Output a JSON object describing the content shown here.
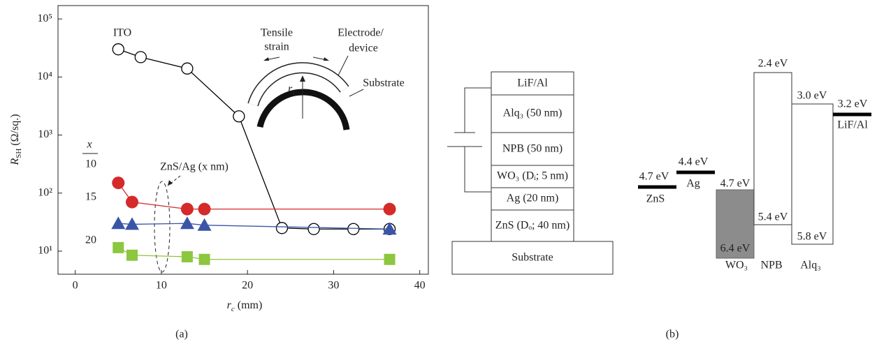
{
  "chart_data": {
    "type": "line",
    "log_y": true,
    "x_label": {
      "main": "r",
      "sub": "c",
      "unit": "(mm)"
    },
    "y_label": {
      "main": "R",
      "sub": "SH",
      "unit": "(Ω/sq.)"
    },
    "xlim": [
      -2,
      41
    ],
    "xticks": [
      0,
      10,
      20,
      30,
      40
    ],
    "ylim": [
      4,
      170000
    ],
    "yticks": [
      {
        "value": 10,
        "label": "10¹"
      },
      {
        "value": 100,
        "label": "10²"
      },
      {
        "value": 1000,
        "label": "10³"
      },
      {
        "value": 10000,
        "label": "10⁴"
      },
      {
        "value": 100000,
        "label": "10⁵"
      }
    ],
    "legend_title": "x",
    "series": [
      {
        "name": "ITO",
        "color": "#000000",
        "marker": "circle-open",
        "x": [
          5,
          7.6,
          13,
          19,
          24,
          27.7,
          32.3,
          36.5
        ],
        "values": [
          30000,
          22000,
          14000,
          2100,
          25,
          24,
          24,
          24
        ]
      },
      {
        "name": "10",
        "color": "#d42a2a",
        "marker": "circle",
        "x": [
          5,
          6.6,
          13,
          15,
          36.5
        ],
        "values": [
          150,
          70,
          53,
          53,
          53
        ]
      },
      {
        "name": "15",
        "color": "#3a55a8",
        "marker": "triangle",
        "x": [
          5,
          6.6,
          13,
          15,
          36.5
        ],
        "values": [
          30,
          29,
          30,
          28,
          24
        ]
      },
      {
        "name": "20",
        "color": "#8dc63f",
        "marker": "square",
        "x": [
          5,
          6.6,
          13,
          15,
          36.5
        ],
        "values": [
          11.5,
          8.5,
          8,
          7.2,
          7.2
        ]
      }
    ],
    "annotations": [
      "ZnS/Ag (x nm)",
      "Tensile",
      "strain",
      "Electrode/",
      "device",
      "Substrate",
      "r",
      "c"
    ],
    "caption": "(a)"
  },
  "diagram": {
    "layers": [
      "LiF/Al",
      "Alq₃ (50 nm)",
      "NPB (50 nm)",
      "WO₃ (Dᵢ; 5 nm)",
      "Ag (20 nm)",
      "ZnS (Dₒ; 40 nm)"
    ],
    "substrate": "Substrate",
    "levels": [
      {
        "name": "ZnS",
        "top": "4.7 eV"
      },
      {
        "name": "Ag",
        "top": "4.4 eV"
      },
      {
        "name": "WO₃",
        "top": "4.7 eV",
        "bottom": "6.4 eV"
      },
      {
        "name": "NPB",
        "top": "2.4 eV",
        "bottom": "5.4 eV"
      },
      {
        "name": "Alq₃",
        "top": "3.0 eV",
        "bottom": "5.8 eV"
      },
      {
        "name": "LiF/Al",
        "top": "3.2 eV"
      }
    ],
    "caption": "(b)"
  }
}
